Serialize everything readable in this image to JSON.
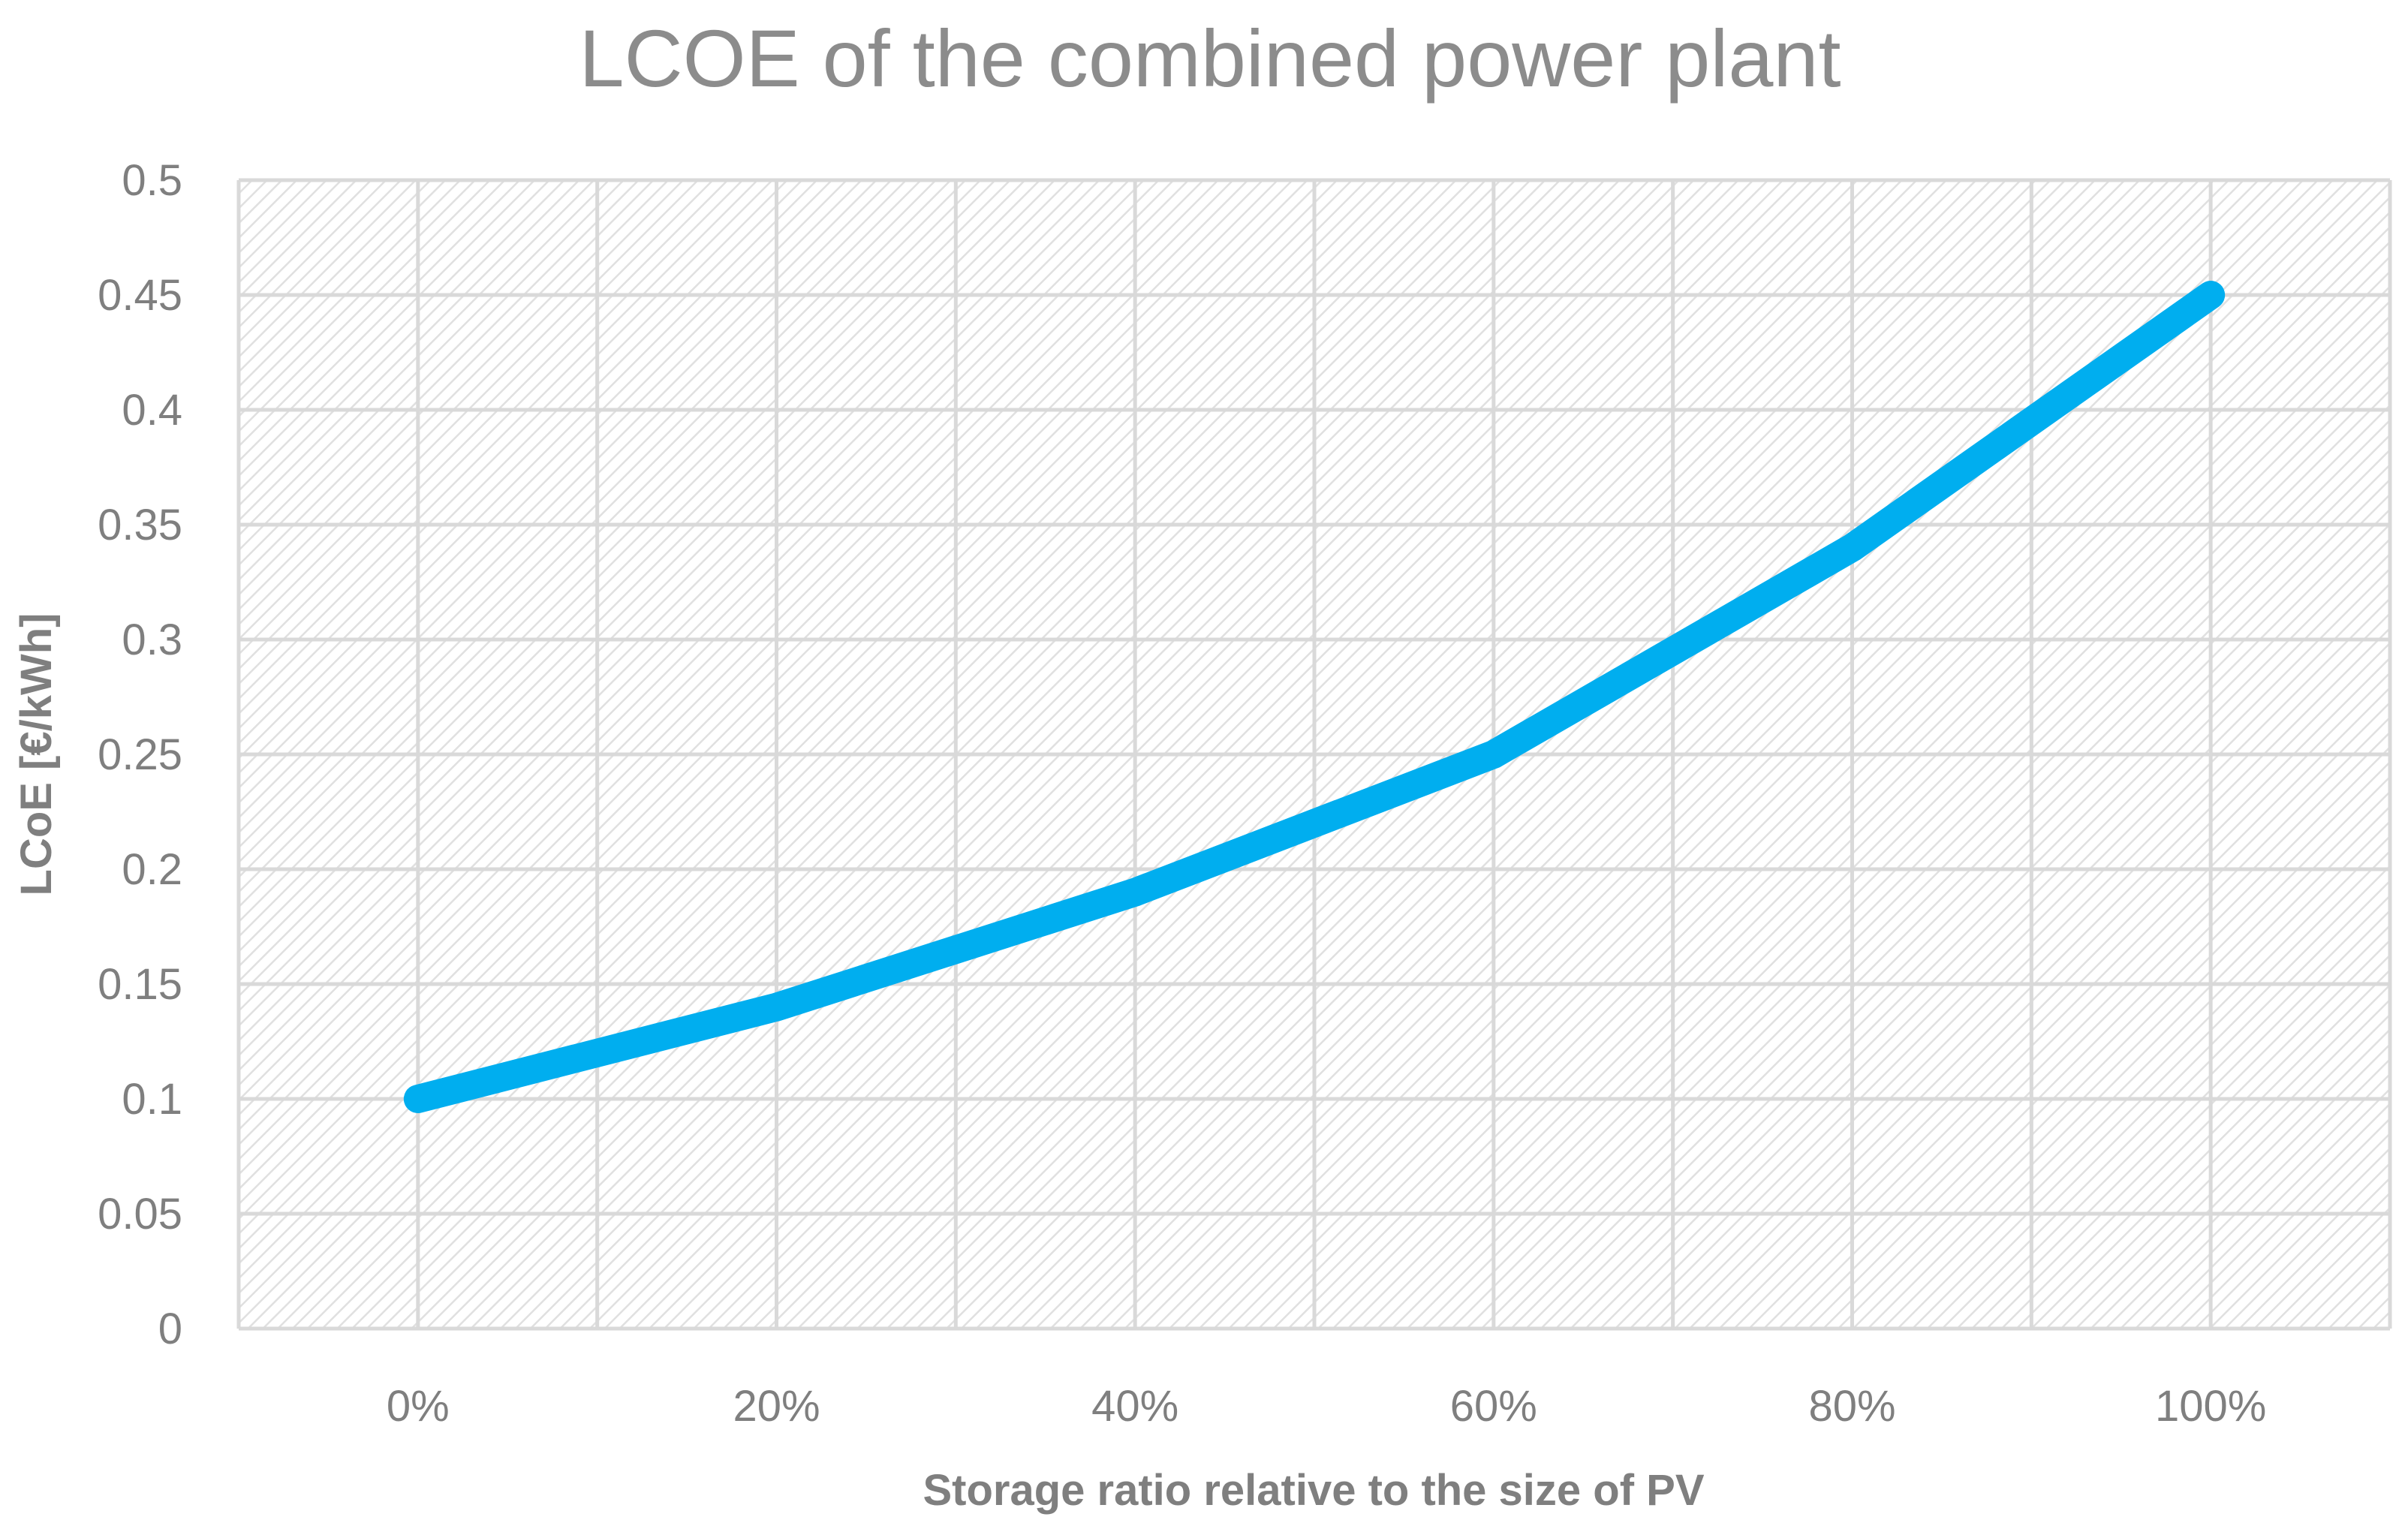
{
  "chart_data": {
    "type": "line",
    "title": "LCOE of the combined power plant",
    "xlabel": "Storage ratio relative to the size of PV",
    "ylabel": "LCoE [€/kWh]",
    "categories": [
      "0%",
      "20%",
      "40%",
      "60%",
      "80%",
      "100%"
    ],
    "series": [
      {
        "name": "LCoE",
        "values": [
          0.1,
          0.14,
          0.19,
          0.25,
          0.34,
          0.45
        ]
      }
    ],
    "ylim": [
      0,
      0.5
    ],
    "yticks": [
      "0",
      "0.05",
      "0.1",
      "0.15",
      "0.2",
      "0.25",
      "0.3",
      "0.35",
      "0.4",
      "0.45",
      "0.5"
    ],
    "grid": true,
    "legend": "none",
    "colors": {
      "line": "#00AEEF",
      "title": "#8C8C8C",
      "text": "#7F7F7F",
      "grid": "#D9D9D9",
      "plot_hatch": "#E3E3E3"
    }
  }
}
